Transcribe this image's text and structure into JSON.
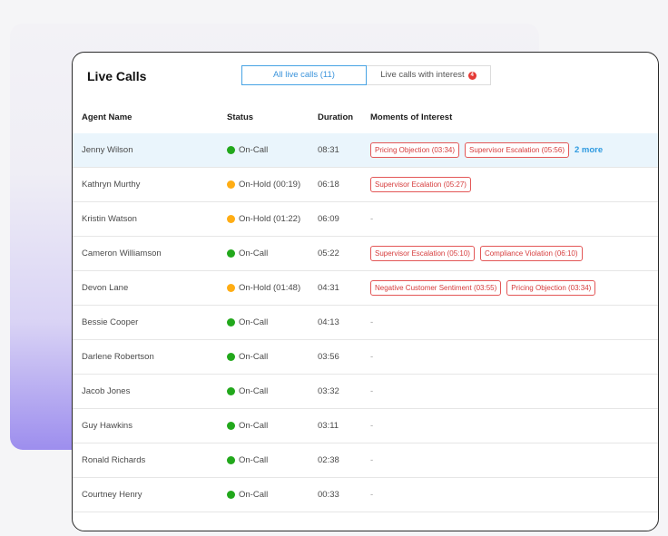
{
  "panel": {
    "title": "Live Calls",
    "tabs": [
      {
        "label": "All live calls (11)",
        "active": true
      },
      {
        "label": "Live calls with interest",
        "badge": "4",
        "active": false
      }
    ]
  },
  "columns": {
    "agent": "Agent Name",
    "status": "Status",
    "duration": "Duration",
    "moments": "Moments of Interest"
  },
  "colors": {
    "on_call": "#22a81c",
    "on_hold": "#ffad14",
    "tag_border": "#e35757",
    "accent": "#2e9ae0"
  },
  "rows": [
    {
      "name": "Jenny Wilson",
      "status": "On-Call",
      "state": "green",
      "duration": "08:31",
      "moments": [
        "Pricing Objection (03:34)",
        "Supervisor Escalation (05:56)"
      ],
      "more": "2 more",
      "highlight": true
    },
    {
      "name": "Kathryn Murthy",
      "status": "On-Hold (00:19)",
      "state": "orange",
      "duration": "06:18",
      "moments": [
        "Supervisor Ecalation (05:27)"
      ]
    },
    {
      "name": "Kristin Watson",
      "status": "On-Hold (01:22)",
      "state": "orange",
      "duration": "06:09",
      "moments": []
    },
    {
      "name": "Cameron Williamson",
      "status": "On-Call",
      "state": "green",
      "duration": "05:22",
      "moments": [
        "Supervisor Escalation (05:10)",
        "Compliance Violation (06:10)"
      ]
    },
    {
      "name": "Devon Lane",
      "status": "On-Hold (01:48)",
      "state": "orange",
      "duration": "04:31",
      "moments": [
        "Negative Customer Sentiment (03:55)",
        "Pricing Objection (03:34)"
      ]
    },
    {
      "name": "Bessie Cooper",
      "status": "On-Call",
      "state": "green",
      "duration": "04:13",
      "moments": []
    },
    {
      "name": "Darlene Robertson",
      "status": "On-Call",
      "state": "green",
      "duration": "03:56",
      "moments": []
    },
    {
      "name": "Jacob Jones",
      "status": "On-Call",
      "state": "green",
      "duration": "03:32",
      "moments": []
    },
    {
      "name": "Guy Hawkins",
      "status": "On-Call",
      "state": "green",
      "duration": "03:11",
      "moments": []
    },
    {
      "name": "Ronald Richards",
      "status": "On-Call",
      "state": "green",
      "duration": "02:38",
      "moments": []
    },
    {
      "name": "Courtney Henry",
      "status": "On-Call",
      "state": "green",
      "duration": "00:33",
      "moments": []
    }
  ],
  "empty_moment": "-"
}
